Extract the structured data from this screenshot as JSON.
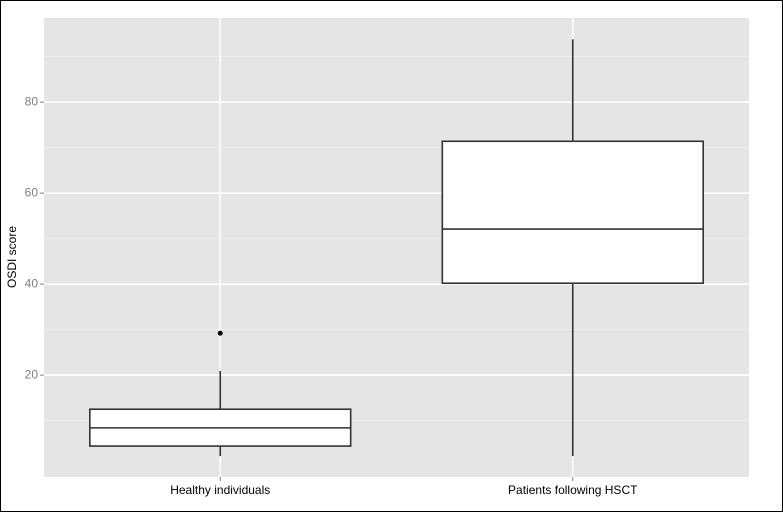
{
  "chart_data": {
    "type": "box",
    "y_label": "OSDI score",
    "categories": [
      "Healthy individuals",
      "Patients following HSCT"
    ],
    "boxes": [
      {
        "min": 2.2,
        "q1": 4.4,
        "median": 8.4,
        "q3": 12.5,
        "max": 20.9,
        "outliers": [
          29.2
        ]
      },
      {
        "min": 2.2,
        "q1": 40.2,
        "median": 52.1,
        "q3": 71.4,
        "max": 93.8,
        "outliers": []
      }
    ],
    "ylim": [
      -2.4,
      98.5
    ],
    "yticks": [
      20,
      40,
      60,
      80
    ],
    "minor_yticks": [
      10,
      30,
      50,
      70,
      90
    ],
    "grid": true,
    "panel_color": "#e5e5e5",
    "box_fill": "#ffffff",
    "line_color": "#333333"
  }
}
